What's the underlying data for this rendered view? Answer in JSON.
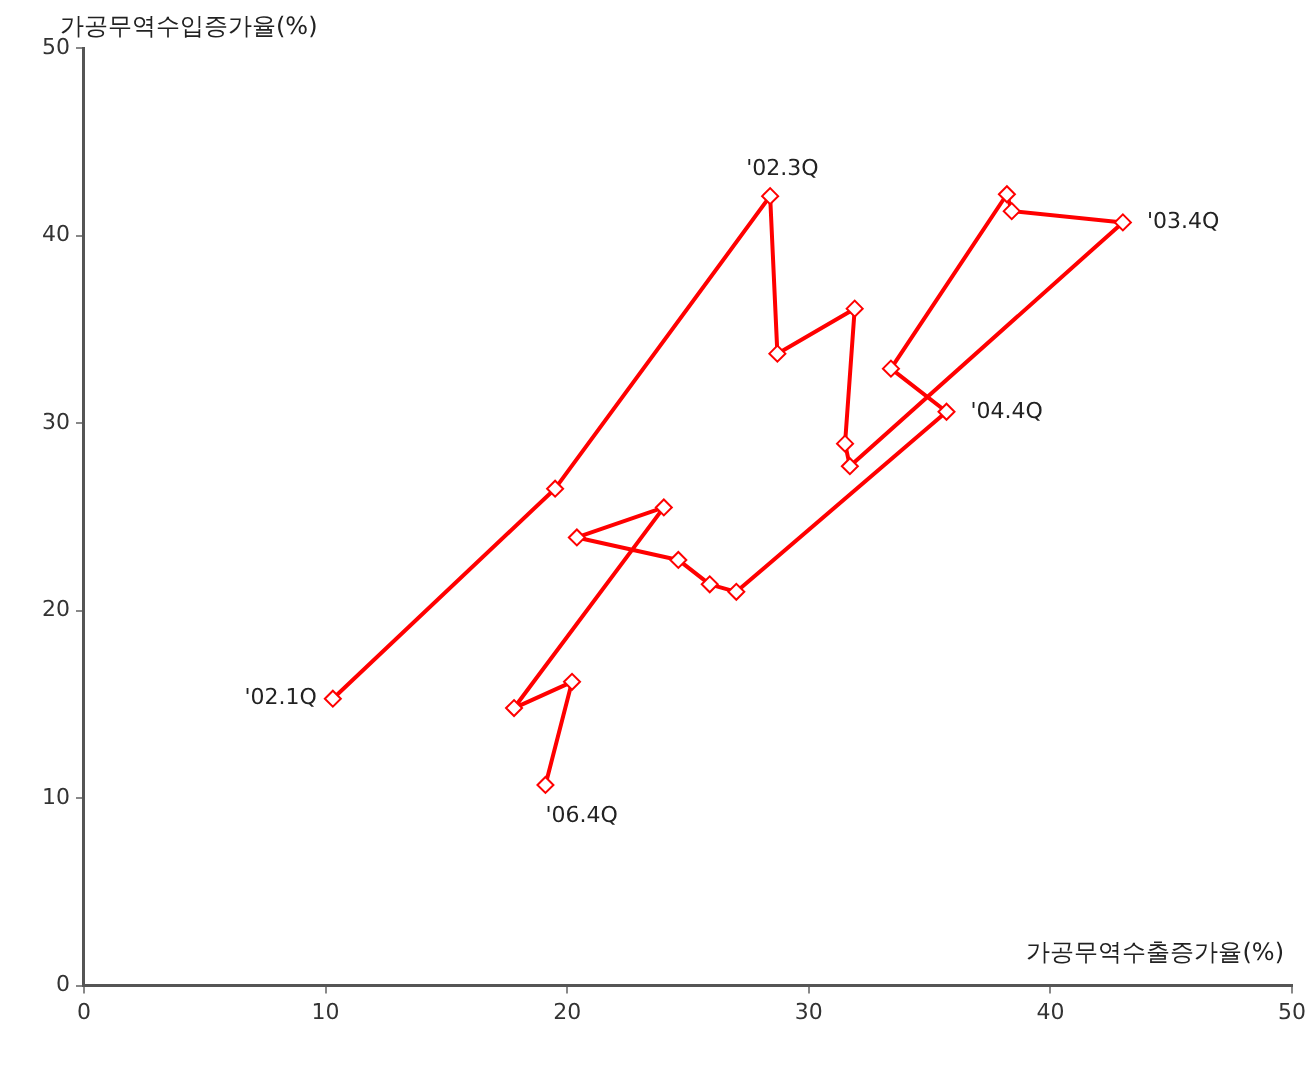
{
  "chart_data": {
    "type": "line",
    "xlabel": "가공무역수출증가율(%)",
    "ylabel": "가공무역수입증가율(%)",
    "x": [
      10.3,
      19.5,
      28.4,
      28.7,
      31.9,
      31.5,
      31.7,
      43.0,
      38.4,
      38.2,
      33.4,
      35.7,
      27.0,
      25.9,
      24.6,
      20.4,
      24.0,
      17.8,
      20.2,
      19.1
    ],
    "series": [
      {
        "color": "#ff0000",
        "values": [
          15.3,
          26.5,
          42.1,
          33.7,
          36.1,
          28.9,
          27.7,
          40.7,
          41.3,
          42.2,
          32.9,
          30.6,
          21.0,
          21.4,
          22.7,
          23.9,
          25.5,
          14.8,
          16.2,
          10.7
        ]
      }
    ],
    "xlim": [
      0,
      50
    ],
    "xticks": [
      0,
      10,
      20,
      30,
      40,
      50
    ],
    "ylim": [
      0,
      50
    ],
    "yticks": [
      0,
      10,
      20,
      30,
      40,
      50
    ],
    "grid": false,
    "legend": false,
    "marker": "diamond",
    "line_style": "solid",
    "annotations": [
      {
        "text": "'02.1Q",
        "x": 10.3,
        "y": 15.3
      },
      {
        "text": "'02.3Q",
        "x": 28.4,
        "y": 42.1
      },
      {
        "text": "'03.4Q",
        "x": 43.0,
        "y": 40.7
      },
      {
        "text": "'04.4Q",
        "x": 35.7,
        "y": 30.6
      },
      {
        "text": "'06.4Q",
        "x": 19.1,
        "y": 10.7
      }
    ]
  }
}
